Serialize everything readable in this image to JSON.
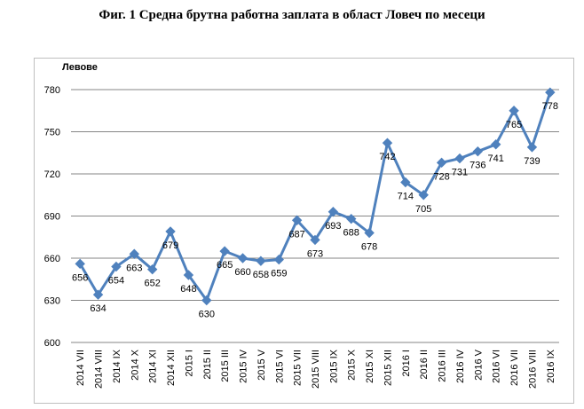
{
  "figure": {
    "title": "Фиг. 1   Средна брутна работна заплата в област Ловеч по месеци"
  },
  "chart_data": {
    "type": "line",
    "title": "Фиг. 1   Средна брутна работна заплата в област Ловеч по месеци",
    "ylabel": "Левове",
    "xlabel": "",
    "ylim": [
      600,
      780
    ],
    "yticks": [
      600,
      630,
      660,
      690,
      720,
      750,
      780
    ],
    "grid": true,
    "legend": "none",
    "line_color": "#4f81bd",
    "categories": [
      "2014 VII",
      "2014 VIII",
      "2014 IX",
      "2014 X",
      "2014 XI",
      "2014 XII",
      "2015 I",
      "2015 II",
      "2015 III",
      "2015 IV",
      "2015 V",
      "2015 VI",
      "2015 VII",
      "2015 VIII",
      "2015 IX",
      "2015 X",
      "2015 XI",
      "2015 XII",
      "2016 I",
      "2016 II",
      "2016 III",
      "2016 IV",
      "2016 V",
      "2016 VI",
      "2016 VII",
      "2016 VIII",
      "2016 IX"
    ],
    "values": [
      656,
      634,
      654,
      663,
      652,
      679,
      648,
      630,
      665,
      660,
      658,
      659,
      687,
      673,
      693,
      688,
      678,
      742,
      714,
      705,
      728,
      731,
      736,
      741,
      765,
      739,
      778
    ]
  }
}
